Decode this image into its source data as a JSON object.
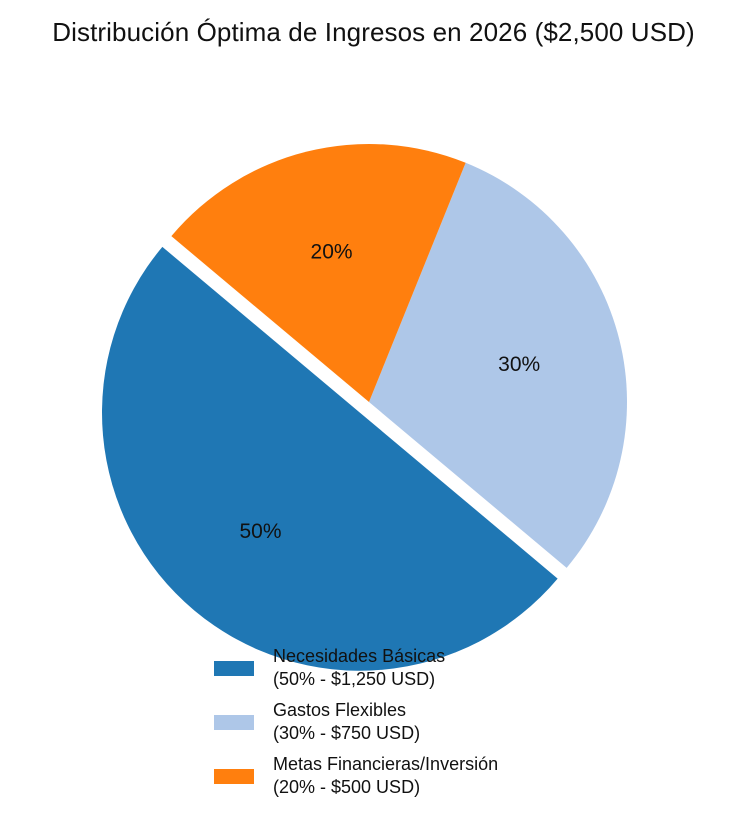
{
  "chart_data": {
    "type": "pie",
    "title": "Distribución Óptima de Ingresos en 2026 ($2,500 USD)",
    "slices": [
      {
        "name": "Necesidades Básicas",
        "detail": "(50% - $1,250 USD)",
        "value": 50,
        "label": "50%",
        "color": "#1f77b4",
        "exploded": true
      },
      {
        "name": "Gastos Flexibles",
        "detail": "(30% - $750 USD)",
        "value": 30,
        "label": "30%",
        "color": "#aec7e8",
        "exploded": false
      },
      {
        "name": "Metas Financieras/Inversión",
        "detail": "(20% - $500 USD)",
        "value": 20,
        "label": "20%",
        "color": "#ff7f0e",
        "exploded": false
      }
    ],
    "legend_position": "bottom-center"
  }
}
